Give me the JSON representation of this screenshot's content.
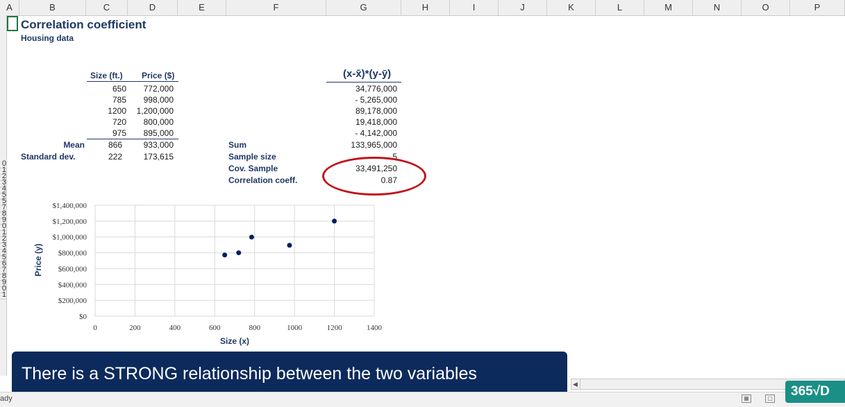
{
  "columns": [
    "A",
    "B",
    "C",
    "D",
    "E",
    "F",
    "G",
    "H",
    "I",
    "J",
    "K",
    "L",
    "M",
    "N",
    "O",
    "P"
  ],
  "rows": [
    "0",
    "1",
    "2",
    "3",
    "4",
    "5",
    "5",
    "7",
    "8",
    "9",
    "0",
    "1",
    "2",
    "3",
    "4",
    "5",
    "6",
    "7",
    "8",
    "9",
    "0",
    "1"
  ],
  "sheet": {
    "title": "Correlation coefficient",
    "subtitle": "Housing data",
    "headers": {
      "size": "Size (ft.)",
      "price": "Price ($)",
      "product": "(x-x̄)*(y-ȳ)"
    },
    "rows": [
      {
        "size": "650",
        "price": "772,000",
        "product": "34,776,000"
      },
      {
        "size": "785",
        "price": "998,000",
        "product": "- 5,265,000"
      },
      {
        "size": "1200",
        "price": "1,200,000",
        "product": "89,178,000"
      },
      {
        "size": "720",
        "price": "800,000",
        "product": "19,418,000"
      },
      {
        "size": "975",
        "price": "895,000",
        "product": "- 4,142,000"
      }
    ],
    "mean": {
      "label": "Mean",
      "size": "866",
      "price": "933,000"
    },
    "stdev": {
      "label": "Standard dev.",
      "size": "222",
      "price": "173,615"
    },
    "stats": [
      {
        "label": "Sum",
        "value": "133,965,000"
      },
      {
        "label": "Sample size",
        "value": "5"
      },
      {
        "label": "Cov. Sample",
        "value": "33,491,250"
      },
      {
        "label": "Correlation coeff.",
        "value": "0.87"
      }
    ]
  },
  "chart_data": {
    "type": "scatter",
    "x": [
      650,
      785,
      1200,
      720,
      975
    ],
    "y": [
      772000,
      998000,
      1200000,
      800000,
      895000
    ],
    "xlabel": "Size (x)",
    "ylabel": "Price (y)",
    "xlim": [
      0,
      1400
    ],
    "ylim": [
      0,
      1400000
    ],
    "xticks": [
      "0",
      "200",
      "400",
      "600",
      "800",
      "1000",
      "1200",
      "1400"
    ],
    "yticks": [
      "$0",
      "$200,000",
      "$400,000",
      "$600,000",
      "$800,000",
      "$1,000,000",
      "$1,200,000",
      "$1,400,000"
    ],
    "grid": true,
    "marker_color": "#002060"
  },
  "banner": {
    "text": "There is a STRONG relationship between the two variables"
  },
  "status": {
    "text": "ady"
  },
  "logo": {
    "text": "365√D"
  },
  "colors": {
    "accent": "#1f3864",
    "banner": "#0c2a5b",
    "circle": "#c0141c",
    "logo": "#1a8f86"
  }
}
